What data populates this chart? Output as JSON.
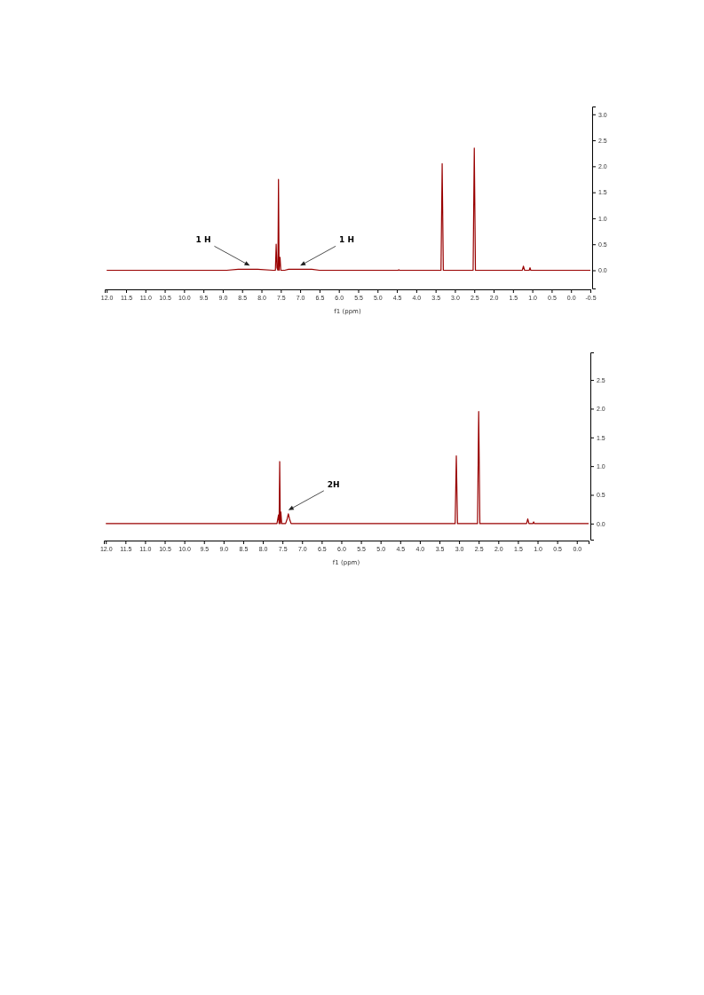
{
  "chart_data": [
    {
      "type": "line",
      "xlabel": "f1 (ppm)",
      "xlim": [
        12.05,
        -0.5
      ],
      "ylim": [
        -0.35,
        3.15
      ],
      "xticks": [
        {
          "value": 12,
          "label": "12.0"
        },
        {
          "value": 11.5,
          "label": "11.5"
        },
        {
          "value": 11,
          "label": "11.0"
        },
        {
          "value": 10.5,
          "label": "10.5"
        },
        {
          "value": 10,
          "label": "10.0"
        },
        {
          "value": 9.5,
          "label": "9.5"
        },
        {
          "value": 9,
          "label": "9.0"
        },
        {
          "value": 8.5,
          "label": "8.5"
        },
        {
          "value": 8,
          "label": "8.0"
        },
        {
          "value": 7.5,
          "label": "7.5"
        },
        {
          "value": 7,
          "label": "7.0"
        },
        {
          "value": 6.5,
          "label": "6.5"
        },
        {
          "value": 6,
          "label": "6.0"
        },
        {
          "value": 5.5,
          "label": "5.5"
        },
        {
          "value": 5,
          "label": "5.0"
        },
        {
          "value": 4.5,
          "label": "4.5"
        },
        {
          "value": 4,
          "label": "4.0"
        },
        {
          "value": 3.5,
          "label": "3.5"
        },
        {
          "value": 3,
          "label": "3.0"
        },
        {
          "value": 2.5,
          "label": "2.5"
        },
        {
          "value": 2,
          "label": "2.0"
        },
        {
          "value": 1.5,
          "label": "1.5"
        },
        {
          "value": 1,
          "label": "1.0"
        },
        {
          "value": 0.5,
          "label": "0.5"
        },
        {
          "value": 0,
          "label": "0.0"
        },
        {
          "value": -0.5,
          "label": "-0.5"
        }
      ],
      "yticks": [
        {
          "value": 0,
          "label": "0.0"
        },
        {
          "value": 0.5,
          "label": "0.5"
        },
        {
          "value": 1,
          "label": "1.0"
        },
        {
          "value": 1.5,
          "label": "1.5"
        },
        {
          "value": 2,
          "label": "2.0"
        },
        {
          "value": 2.5,
          "label": "2.5"
        },
        {
          "value": 3,
          "label": "3.0"
        }
      ],
      "grid": false,
      "series": [
        {
          "color": "#990000",
          "x": [
            12.0,
            8.9,
            8.6,
            8.1,
            7.7,
            7.64,
            7.62,
            7.6,
            7.575,
            7.56,
            7.545,
            7.52,
            7.5,
            7.4,
            7.3,
            6.7,
            6.5,
            4.47,
            4.45,
            4.43,
            3.36,
            3.33,
            3.3,
            2.53,
            2.5,
            2.47,
            1.26,
            1.23,
            1.2,
            1.08,
            1.06,
            1.04,
            -0.5
          ],
          "values": [
            0,
            0,
            0.02,
            0.02,
            0,
            0,
            0.5,
            0.05,
            0,
            1.75,
            0,
            0.25,
            0,
            0,
            0.02,
            0.02,
            0,
            0,
            0.01,
            0,
            0,
            2.05,
            0,
            0,
            2.35,
            0,
            0,
            0.08,
            0,
            0,
            0.05,
            0,
            0
          ]
        }
      ],
      "annotations": [
        {
          "text": "1 H",
          "x": 8.3,
          "y": 0.02
        },
        {
          "text": "1 H",
          "x": 7.0,
          "y": 0.02
        }
      ]
    },
    {
      "type": "line",
      "xlabel": "f1 (ppm)",
      "xlim": [
        12.05,
        -0.3
      ],
      "ylim": [
        -0.28,
        2.98
      ],
      "xticks": [
        {
          "value": 12,
          "label": "12.0"
        },
        {
          "value": 11.5,
          "label": "11.5"
        },
        {
          "value": 11,
          "label": "11.0"
        },
        {
          "value": 10.5,
          "label": "10.5"
        },
        {
          "value": 10,
          "label": "10.0"
        },
        {
          "value": 9.5,
          "label": "9.5"
        },
        {
          "value": 9,
          "label": "9.0"
        },
        {
          "value": 8.5,
          "label": "8.5"
        },
        {
          "value": 8,
          "label": "8.0"
        },
        {
          "value": 7.5,
          "label": "7.5"
        },
        {
          "value": 7,
          "label": "7.0"
        },
        {
          "value": 6.5,
          "label": "6.5"
        },
        {
          "value": 6,
          "label": "6.0"
        },
        {
          "value": 5.5,
          "label": "5.5"
        },
        {
          "value": 5,
          "label": "5.0"
        },
        {
          "value": 4.5,
          "label": "4.5"
        },
        {
          "value": 4,
          "label": "4.0"
        },
        {
          "value": 3.5,
          "label": "3.5"
        },
        {
          "value": 3,
          "label": "3.0"
        },
        {
          "value": 2.5,
          "label": "2.5"
        },
        {
          "value": 2,
          "label": "2.0"
        },
        {
          "value": 1.5,
          "label": "1.5"
        },
        {
          "value": 1,
          "label": "1.0"
        },
        {
          "value": 0.5,
          "label": "0.5"
        },
        {
          "value": 0,
          "label": "0.0"
        }
      ],
      "yticks": [
        {
          "value": 0,
          "label": "0.0"
        },
        {
          "value": 0.5,
          "label": "0.5"
        },
        {
          "value": 1,
          "label": "1.0"
        },
        {
          "value": 1.5,
          "label": "1.5"
        },
        {
          "value": 2,
          "label": "2.0"
        },
        {
          "value": 2.5,
          "label": "2.5"
        }
      ],
      "grid": false,
      "series": [
        {
          "color": "#990000",
          "x": [
            12.0,
            7.64,
            7.6,
            7.585,
            7.57,
            7.555,
            7.54,
            7.52,
            7.42,
            7.38,
            7.35,
            7.32,
            7.28,
            3.1,
            3.07,
            3.04,
            2.53,
            2.5,
            2.47,
            1.28,
            1.25,
            1.22,
            1.12,
            1.1,
            1.08,
            -0.3
          ],
          "values": [
            0,
            0,
            0.15,
            0,
            1.08,
            0,
            0.2,
            0,
            0,
            0.08,
            0.17,
            0.08,
            0,
            0,
            1.18,
            0,
            0,
            1.95,
            0,
            0,
            0.08,
            0,
            0,
            0.03,
            0,
            0
          ]
        }
      ],
      "annotations": [
        {
          "text": "2H",
          "x": 7.35,
          "y": 0.17
        }
      ]
    }
  ]
}
